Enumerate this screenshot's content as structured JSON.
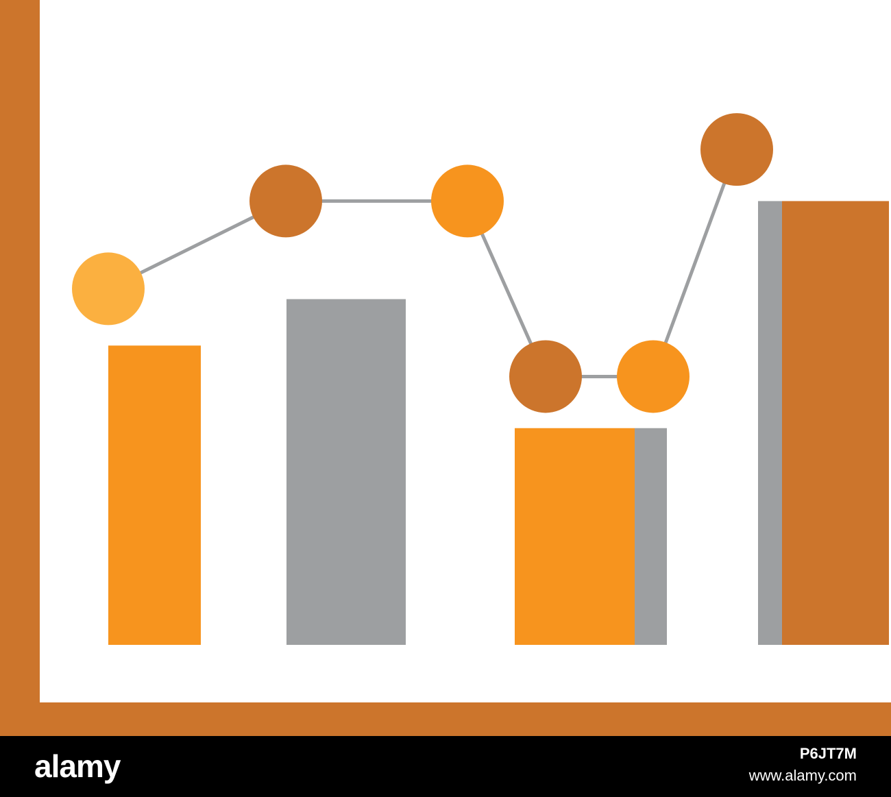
{
  "chart_data": {
    "type": "bar",
    "title": "",
    "xlabel": "",
    "ylabel": "",
    "ylim": [
      0,
      100
    ],
    "grid": false,
    "categories": [
      "",
      "",
      "",
      ""
    ],
    "series": [
      {
        "kind": "bar",
        "values": [
          58,
          67,
          42,
          86
        ],
        "colors": [
          "#f7941e",
          "#9d9fa1",
          "#f7941e",
          "#cc752c"
        ],
        "shade_colors": [
          null,
          null,
          "#9d9fa1",
          "#9d9fa1"
        ]
      },
      {
        "kind": "line",
        "x": [
          1,
          2,
          3,
          4,
          5,
          6
        ],
        "values": [
          69,
          86,
          86,
          52,
          52,
          96
        ],
        "point_colors": [
          "#fbb040",
          "#cc752c",
          "#f7941e",
          "#cc752c",
          "#f7941e",
          "#cc752c"
        ],
        "line_color": "#9d9fa1"
      }
    ],
    "axis_color": "#cc752c"
  },
  "footer": {
    "brand": "alamy",
    "image_id": "P6JT7M",
    "site": "www.alamy.com"
  }
}
